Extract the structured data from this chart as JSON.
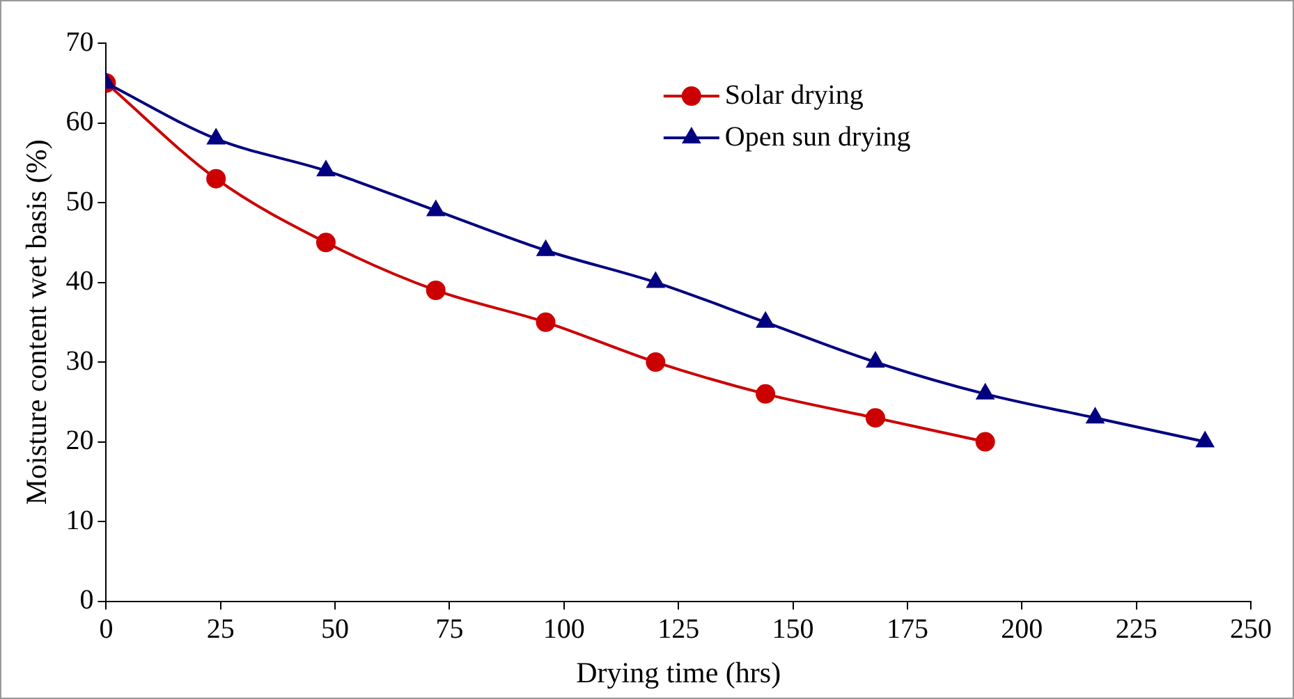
{
  "chart_data": {
    "type": "line",
    "xlabel": "Drying time (hrs)",
    "ylabel": "Moisture content wet basis (%)",
    "xlim": [
      0,
      250
    ],
    "xticks": [
      0,
      25,
      50,
      75,
      100,
      125,
      150,
      175,
      200,
      225,
      250
    ],
    "ylim": [
      0,
      70
    ],
    "yticks": [
      0,
      10,
      20,
      30,
      40,
      50,
      60,
      70
    ],
    "grid": false,
    "legend": "top right",
    "series": [
      {
        "name": "Solar drying",
        "color": "#cc0000",
        "marker": "circle",
        "x": [
          0,
          24,
          48,
          72,
          96,
          120,
          144,
          168,
          192
        ],
        "values": [
          65,
          53,
          45,
          39,
          35,
          30,
          26,
          23,
          20
        ]
      },
      {
        "name": "Open sun drying",
        "color": "#000080",
        "marker": "triangle",
        "x": [
          0,
          24,
          48,
          72,
          96,
          120,
          144,
          168,
          192,
          216,
          240
        ],
        "values": [
          65,
          58,
          54,
          49,
          44,
          40,
          35,
          30,
          26,
          23,
          20
        ]
      }
    ]
  }
}
